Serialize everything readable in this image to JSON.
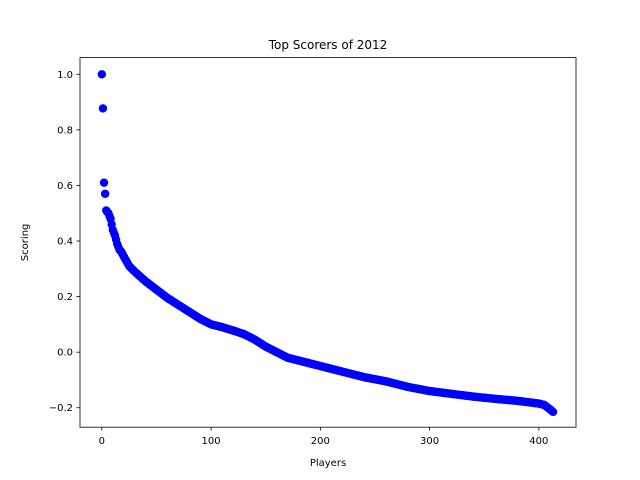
{
  "chart_data": {
    "type": "scatter",
    "title": "Top Scorers of 2012",
    "xlabel": "Players",
    "ylabel": "Scoring",
    "xlim": [
      -20,
      434
    ],
    "ylim": [
      -0.27,
      1.06
    ],
    "xticks": [
      0,
      100,
      200,
      300,
      400
    ],
    "xtick_labels": [
      "0",
      "100",
      "200",
      "300",
      "400"
    ],
    "yticks": [
      -0.2,
      0.0,
      0.2,
      0.4,
      0.6,
      0.8,
      1.0
    ],
    "ytick_labels": [
      "−0.2",
      "0.0",
      "0.2",
      "0.4",
      "0.6",
      "0.8",
      "1.0"
    ],
    "grid": false,
    "marker_color": "#0000ff",
    "anchors": [
      [
        0,
        1.0
      ],
      [
        1,
        0.877
      ],
      [
        2,
        0.61
      ],
      [
        3,
        0.57
      ],
      [
        4,
        0.51
      ],
      [
        6,
        0.5
      ],
      [
        8,
        0.48
      ],
      [
        10,
        0.44
      ],
      [
        12,
        0.42
      ],
      [
        14,
        0.39
      ],
      [
        16,
        0.37
      ],
      [
        18,
        0.36
      ],
      [
        20,
        0.345
      ],
      [
        25,
        0.31
      ],
      [
        30,
        0.29
      ],
      [
        40,
        0.255
      ],
      [
        50,
        0.225
      ],
      [
        60,
        0.195
      ],
      [
        70,
        0.17
      ],
      [
        80,
        0.145
      ],
      [
        90,
        0.12
      ],
      [
        100,
        0.1
      ],
      [
        110,
        0.09
      ],
      [
        120,
        0.078
      ],
      [
        130,
        0.065
      ],
      [
        140,
        0.045
      ],
      [
        150,
        0.02
      ],
      [
        160,
        0.0
      ],
      [
        170,
        -0.02
      ],
      [
        180,
        -0.03
      ],
      [
        200,
        -0.05
      ],
      [
        220,
        -0.07
      ],
      [
        240,
        -0.09
      ],
      [
        260,
        -0.105
      ],
      [
        280,
        -0.125
      ],
      [
        300,
        -0.14
      ],
      [
        320,
        -0.15
      ],
      [
        340,
        -0.16
      ],
      [
        360,
        -0.168
      ],
      [
        380,
        -0.175
      ],
      [
        400,
        -0.185
      ],
      [
        405,
        -0.19
      ],
      [
        410,
        -0.205
      ],
      [
        413,
        -0.215
      ]
    ]
  }
}
